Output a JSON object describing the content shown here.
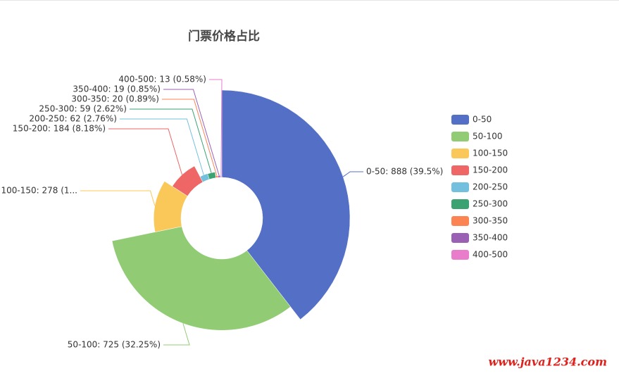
{
  "chart_data": {
    "type": "pie",
    "rose": "radius",
    "title": "门票价格占比",
    "categories": [
      "0-50",
      "50-100",
      "100-150",
      "150-200",
      "200-250",
      "250-300",
      "300-350",
      "350-400",
      "400-500"
    ],
    "values": [
      888,
      725,
      278,
      184,
      62,
      59,
      20,
      19,
      13
    ],
    "value_labels": [
      "0-50: 888 (39.5%)",
      "50-100: 725 (32.25%)",
      "100-150: 278 (1...",
      "150-200: 184 (8.18%)",
      "200-250: 62 (2.76%)",
      "250-300: 59 (2.62%)",
      "300-350: 20 (0.89%)",
      "350-400: 19 (0.85%)",
      "400-500: 13 (0.58%)"
    ],
    "colors": [
      "#5470c6",
      "#91cc75",
      "#fac858",
      "#ee6666",
      "#73c0de",
      "#3ba272",
      "#fc8452",
      "#9a60b4",
      "#ea7ccc"
    ],
    "legend": "right",
    "watermark": "www.java1234.com"
  }
}
